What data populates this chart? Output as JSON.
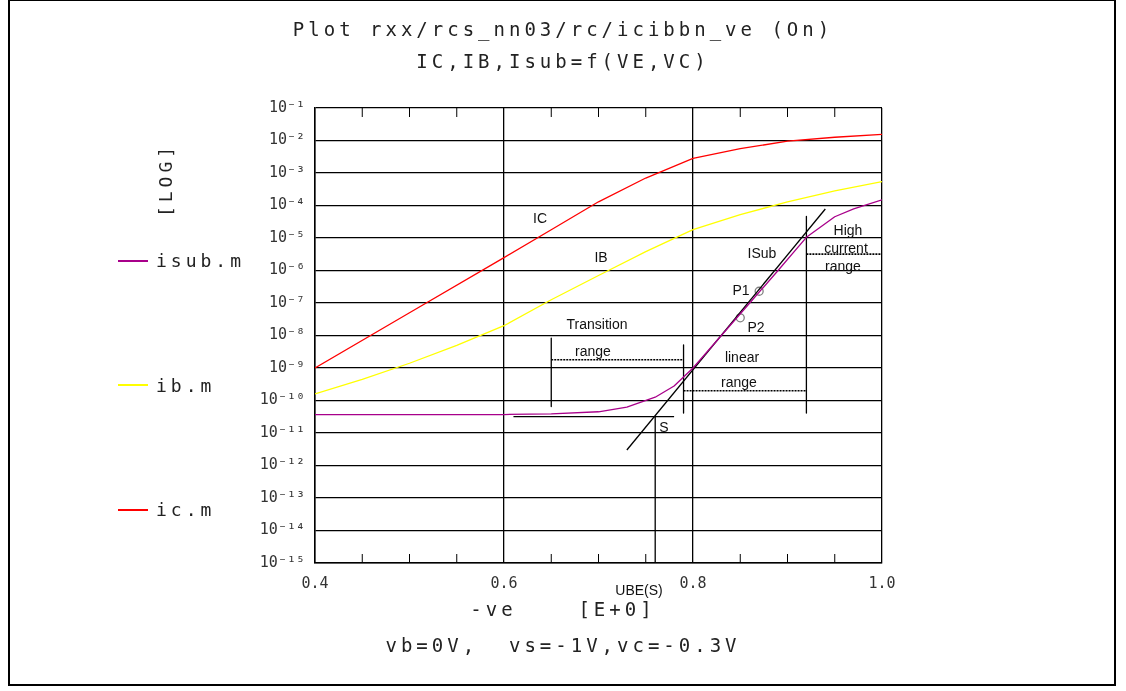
{
  "chart_data": {
    "type": "line",
    "title": "Plot rxx/rcs_nn03/rc/icibbn_ve (On)",
    "subtitle": "IC,IB,Isub=f(VE,VC)",
    "xlabel": "-ve    [E+0]",
    "log": "y",
    "grid": true,
    "legend": "left",
    "xlim": [
      0.4,
      1.0
    ],
    "xticks": [
      0.4,
      {
        "value": 0.45,
        "label": null
      },
      {
        "value": 0.5,
        "label": null
      },
      {
        "value": 0.55,
        "label": null
      },
      0.6,
      {
        "value": 0.65,
        "label": null
      },
      {
        "value": 0.7,
        "label": null
      },
      {
        "value": 0.75,
        "label": null
      },
      0.8,
      {
        "value": 0.85,
        "label": null
      },
      {
        "value": 0.9,
        "label": null
      },
      {
        "value": 0.95,
        "label": null
      },
      {
        "value": 1.0,
        "label": "1.0"
      }
    ],
    "ylim": [
      1e-15,
      0.1
    ],
    "yticks": [
      {
        "value": 1e-15,
        "label": "10⁻¹⁵"
      },
      {
        "value": 1e-14,
        "label": "10⁻¹⁴"
      },
      {
        "value": 1e-13,
        "label": "10⁻¹³"
      },
      {
        "value": 1e-12,
        "label": "10⁻¹²"
      },
      {
        "value": 1e-11,
        "label": "10⁻¹¹"
      },
      {
        "value": 1e-10,
        "label": "10⁻¹⁰"
      },
      {
        "value": 1e-09,
        "label": "10⁻⁹"
      },
      {
        "value": 1e-08,
        "label": "10⁻⁸"
      },
      {
        "value": 1e-07,
        "label": "10⁻⁷"
      },
      {
        "value": 1e-06,
        "label": "10⁻⁶"
      },
      {
        "value": 1e-05,
        "label": "10⁻⁵"
      },
      {
        "value": 0.0001,
        "label": "10⁻⁴"
      },
      {
        "value": 0.001,
        "label": "10⁻³"
      },
      {
        "value": 0.01,
        "label": "10⁻²"
      },
      {
        "value": 0.1,
        "label": "10⁻¹"
      }
    ],
    "series": [
      {
        "name": "ic.m",
        "color": "#ff0000",
        "x": [
          0.4,
          0.5,
          0.6,
          0.65,
          0.7,
          0.75,
          0.8,
          0.85,
          0.9,
          0.95,
          1.0
        ],
        "values": [
          1e-09,
          5e-08,
          2.5e-06,
          1.8e-05,
          0.00013,
          0.0007,
          0.0028,
          0.0056,
          0.0095,
          0.0126,
          0.0155
        ]
      },
      {
        "name": "ib.m",
        "color": "#ffff00",
        "x": [
          0.4,
          0.45,
          0.5,
          0.55,
          0.6,
          0.65,
          0.7,
          0.75,
          0.8,
          0.85,
          0.9,
          0.95,
          1.0
        ],
        "values": [
          1.6e-10,
          4.5e-10,
          1.4e-09,
          5e-09,
          2e-08,
          1.26e-07,
          7e-07,
          3.8e-06,
          1.8e-05,
          5.2e-05,
          0.00013,
          0.00028,
          0.00054
        ]
      },
      {
        "name": "isub.m",
        "color": "#a8008a",
        "x": [
          0.4,
          0.5,
          0.6,
          0.65,
          0.7,
          0.73,
          0.76,
          0.78,
          0.8,
          0.83,
          0.86,
          0.89,
          0.92,
          0.95,
          0.97,
          1.0
        ],
        "values": [
          3.7e-11,
          3.7e-11,
          3.7e-11,
          3.9e-11,
          4.5e-11,
          6.3e-11,
          1.26e-10,
          2.8e-10,
          1e-09,
          1e-08,
          1e-07,
          1e-06,
          1.05e-05,
          4.5e-05,
          7.9e-05,
          0.00015
        ]
      },
      {
        "type": "line",
        "color": "#000000",
        "x": [
          0.73,
          0.94
        ],
        "values": [
          3e-12,
          7.8e-05
        ]
      },
      {
        "type": "line",
        "color": "#000000",
        "x": [
          0.65,
          0.65
        ],
        "values": [
          8.3e-09,
          6.5e-11
        ]
      },
      {
        "type": "line",
        "color": "#000000",
        "x": [
          0.79,
          0.79
        ],
        "values": [
          5.1e-09,
          4.1e-11
        ]
      },
      {
        "type": "line",
        "color": "#000000",
        "x": [
          0.92,
          0.92
        ],
        "values": [
          4.6e-05,
          4.1e-11
        ]
      },
      {
        "type": "line",
        "color": "#000000",
        "x": [
          0.61,
          0.78
        ],
        "values": [
          3.2e-11,
          3.2e-11
        ]
      },
      {
        "type": "line",
        "color": "#000000",
        "x": [
          0.76,
          0.76
        ],
        "values": [
          3.2e-11,
          1e-15
        ]
      },
      {
        "type": "line",
        "color": "#000000",
        "line_style": "dotted",
        "x": [
          0.65,
          0.79
        ],
        "values": [
          1.8e-09,
          1.8e-09
        ]
      },
      {
        "type": "line",
        "color": "#000000",
        "line_style": "dotted",
        "x": [
          0.79,
          0.92
        ],
        "values": [
          2e-10,
          2e-10
        ]
      },
      {
        "type": "line",
        "color": "#000000",
        "line_style": "dotted",
        "x": [
          0.92,
          1.0
        ],
        "values": [
          3.2e-06,
          3.2e-06
        ]
      },
      {
        "type": "scatter",
        "color": "#808080",
        "marker": "circle",
        "x": [
          0.87,
          0.85
        ],
        "values": [
          2.3e-07,
          3.5e-08
        ]
      }
    ],
    "annotations": [
      "IC",
      "IB",
      "ISub",
      "P1",
      "P2",
      "Transition",
      "range",
      "linear",
      "range",
      "High",
      "current",
      "range",
      "S",
      "UBE(S)",
      "[LOG]",
      "vb=0V,  vs=-1V,vc=-0.3V"
    ]
  }
}
